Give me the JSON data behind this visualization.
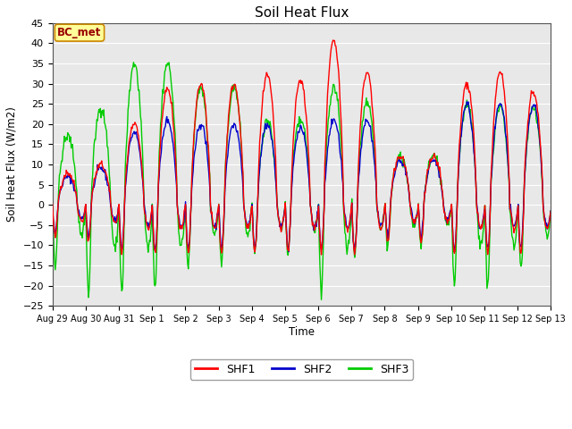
{
  "title": "Soil Heat Flux",
  "ylabel": "Soil Heat Flux (W/m2)",
  "xlabel": "Time",
  "annotation": "BC_met",
  "ylim": [
    -25,
    45
  ],
  "yticks": [
    -25,
    -20,
    -15,
    -10,
    -5,
    0,
    5,
    10,
    15,
    20,
    25,
    30,
    35,
    40,
    45
  ],
  "xtick_labels": [
    "Aug 29",
    "Aug 30",
    "Aug 31",
    "Sep 1",
    "Sep 2",
    "Sep 3",
    "Sep 4",
    "Sep 5",
    "Sep 6",
    "Sep 7",
    "Sep 8",
    "Sep 9",
    "Sep 10",
    "Sep 11",
    "Sep 12",
    "Sep 13"
  ],
  "line_colors": {
    "SHF1": "#ff0000",
    "SHF2": "#0000cc",
    "SHF3": "#00cc00"
  },
  "line_widths": {
    "SHF1": 1.0,
    "SHF2": 1.0,
    "SHF3": 1.0
  },
  "fig_bg_color": "#ffffff",
  "plot_bg_color": "#e8e8e8",
  "annotation_bg": "#ffff99",
  "annotation_border": "#cc8800",
  "annotation_text_color": "#990000",
  "grid_color": "#ffffff",
  "num_days": 15,
  "points_per_day": 48,
  "day_amp_shf1": [
    8,
    10,
    20,
    29,
    30,
    30,
    32,
    31,
    41,
    33,
    12,
    12,
    30,
    33,
    28
  ],
  "day_amp_shf2": [
    7,
    9,
    18,
    21,
    20,
    20,
    20,
    19,
    21,
    21,
    11,
    11,
    25,
    25,
    25
  ],
  "day_amp_shf3": [
    17,
    24,
    35,
    35,
    29,
    29,
    21,
    21,
    29,
    25,
    12,
    12,
    25,
    24,
    24
  ],
  "night_depth_shf1": [
    -8,
    -9,
    -12,
    -12,
    -12,
    -12,
    -12,
    -12,
    -12,
    -12,
    -9,
    -9,
    -12,
    -12,
    -12
  ],
  "night_depth_shf2": [
    -7,
    -8,
    -11,
    -11,
    -11,
    -11,
    -11,
    -11,
    -11,
    -11,
    -8,
    -8,
    -11,
    -11,
    -11
  ],
  "night_depth_shf3": [
    -15,
    -22,
    -22,
    -20,
    -15,
    -15,
    -12,
    -12,
    -22,
    -12,
    -10,
    -10,
    -20,
    -20,
    -15
  ]
}
